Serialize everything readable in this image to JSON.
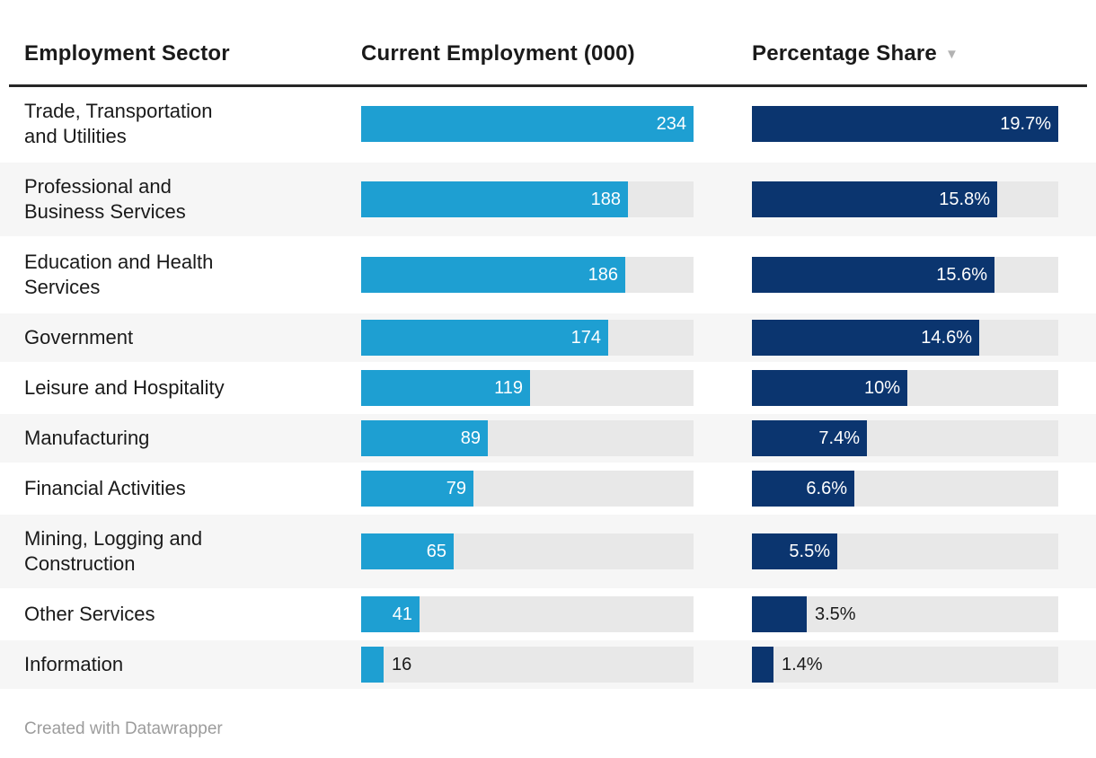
{
  "header": {
    "sector": "Employment Sector",
    "employment": "Current Employment (000)",
    "share": "Percentage Share",
    "sort_icon": "▼"
  },
  "colors": {
    "employment_bar": "#1e9fd2",
    "share_bar": "#0b356f",
    "bar_track": "#e8e8e8",
    "row_stripe": "#f6f6f6",
    "value_label_inside": "#ffffff",
    "value_label_outside": "#1a1a1a",
    "header_rule": "#262626",
    "sort_icon_color": "#b3b3b3",
    "footer_text": "#9c9c9c"
  },
  "rows": [
    {
      "sector": "Trade, Transportation\nand Utilities",
      "employment": 234,
      "employment_label": "234",
      "share": 19.7,
      "share_label": "19.7%"
    },
    {
      "sector": "Professional and\nBusiness Services",
      "employment": 188,
      "employment_label": "188",
      "share": 15.8,
      "share_label": "15.8%"
    },
    {
      "sector": "Education and Health\nServices",
      "employment": 186,
      "employment_label": "186",
      "share": 15.6,
      "share_label": "15.6%"
    },
    {
      "sector": "Government",
      "employment": 174,
      "employment_label": "174",
      "share": 14.6,
      "share_label": "14.6%"
    },
    {
      "sector": "Leisure and Hospitality",
      "employment": 119,
      "employment_label": "119",
      "share": 10,
      "share_label": "10%"
    },
    {
      "sector": "Manufacturing",
      "employment": 89,
      "employment_label": "89",
      "share": 7.4,
      "share_label": "7.4%"
    },
    {
      "sector": "Financial Activities",
      "employment": 79,
      "employment_label": "79",
      "share": 6.6,
      "share_label": "6.6%"
    },
    {
      "sector": "Mining, Logging and\nConstruction",
      "employment": 65,
      "employment_label": "65",
      "share": 5.5,
      "share_label": "5.5%"
    },
    {
      "sector": "Other Services",
      "employment": 41,
      "employment_label": "41",
      "share": 3.5,
      "share_label": "3.5%"
    },
    {
      "sector": "Information",
      "employment": 16,
      "employment_label": "16",
      "share": 1.4,
      "share_label": "1.4%"
    }
  ],
  "chart_data": {
    "type": "bar",
    "title": "",
    "legend": "none",
    "categories": [
      "Trade, Transportation and Utilities",
      "Professional and Business Services",
      "Education and Health Services",
      "Government",
      "Leisure and Hospitality",
      "Manufacturing",
      "Financial Activities",
      "Mining, Logging and Construction",
      "Other Services",
      "Information"
    ],
    "series": [
      {
        "name": "Current Employment (000)",
        "values": [
          234,
          188,
          186,
          174,
          119,
          89,
          79,
          65,
          41,
          16
        ],
        "value_labels": [
          "234",
          "188",
          "186",
          "174",
          "119",
          "89",
          "79",
          "65",
          "41",
          "16"
        ],
        "max": 234,
        "color": "#1e9fd2"
      },
      {
        "name": "Percentage Share",
        "values": [
          19.7,
          15.8,
          15.6,
          14.6,
          10,
          7.4,
          6.6,
          5.5,
          3.5,
          1.4
        ],
        "value_labels": [
          "19.7%",
          "15.8%",
          "15.6%",
          "14.6%",
          "10%",
          "7.4%",
          "6.6%",
          "5.5%",
          "3.5%",
          "1.4%"
        ],
        "max": 19.7,
        "color": "#0b356f"
      }
    ],
    "sort": {
      "column": "Percentage Share",
      "direction": "descending"
    }
  },
  "footer": {
    "credit": "Created with Datawrapper"
  }
}
